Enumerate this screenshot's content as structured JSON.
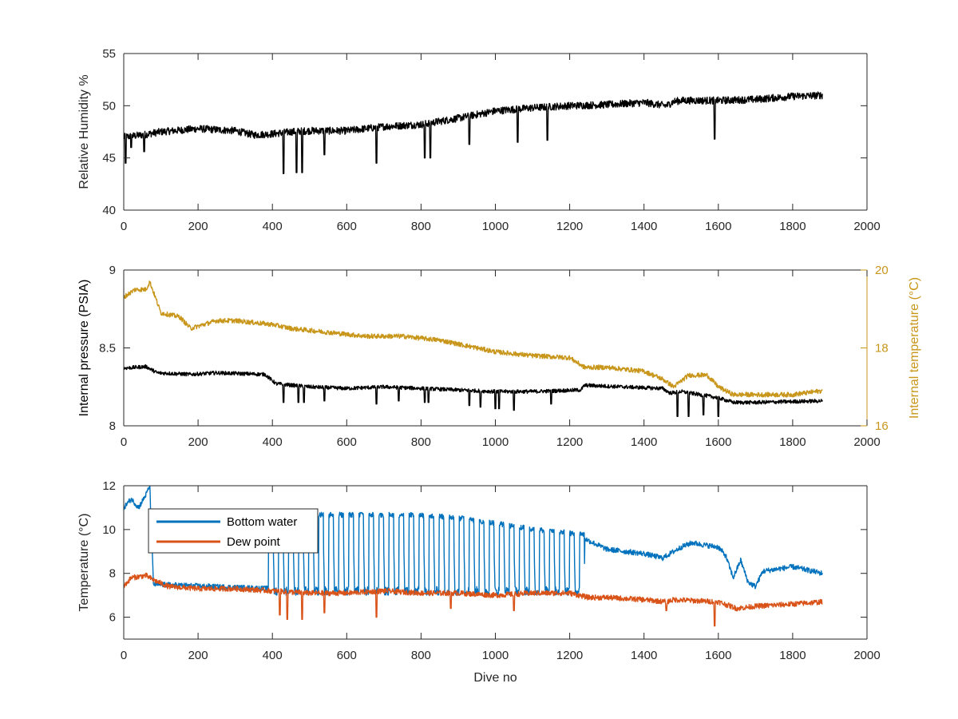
{
  "chart_data": [
    {
      "type": "line",
      "xlim": [
        0,
        2000
      ],
      "ylim": [
        40,
        55
      ],
      "xticks": [
        "0",
        "200",
        "400",
        "600",
        "800",
        "1000",
        "1200",
        "1400",
        "1600",
        "1800",
        "2000"
      ],
      "yticks": [
        "40",
        "45",
        "50",
        "55"
      ],
      "ylabel": "Relative Humidity %",
      "xlabel": "",
      "grid": false,
      "series": [
        {
          "color": "#000000",
          "x": [
            0,
            50,
            100,
            200,
            300,
            350,
            400,
            450,
            500,
            600,
            700,
            800,
            900,
            1000,
            1100,
            1200,
            1300,
            1400,
            1460,
            1480,
            1500,
            1600,
            1700,
            1800,
            1880
          ],
          "y": [
            47.0,
            47.2,
            47.5,
            47.8,
            47.6,
            47.2,
            47.3,
            47.5,
            47.6,
            47.6,
            48.0,
            48.2,
            48.8,
            49.5,
            49.8,
            50.0,
            50.1,
            50.3,
            50.0,
            50.4,
            50.5,
            50.5,
            50.6,
            50.9,
            51.0
          ],
          "dips": [
            [
              5,
              44.5
            ],
            [
              20,
              46.0
            ],
            [
              55,
              45.6
            ],
            [
              430,
              43.5
            ],
            [
              465,
              43.6
            ],
            [
              480,
              43.6
            ],
            [
              540,
              45.3
            ],
            [
              680,
              44.5
            ],
            [
              810,
              45.0
            ],
            [
              825,
              45.0
            ],
            [
              930,
              46.3
            ],
            [
              1060,
              46.5
            ],
            [
              1140,
              46.7
            ],
            [
              1590,
              46.8
            ]
          ]
        }
      ]
    },
    {
      "type": "line",
      "xlim": [
        0,
        2000
      ],
      "ylim": [
        8,
        9
      ],
      "y2lim": [
        16,
        20
      ],
      "xticks": [
        "0",
        "200",
        "400",
        "600",
        "800",
        "1000",
        "1200",
        "1400",
        "1600",
        "1800",
        "2000"
      ],
      "yticks": [
        "8",
        "8.5",
        "9"
      ],
      "y2ticks": [
        "16",
        "18",
        "20"
      ],
      "ylabel": "Internal pressure (PSIA)",
      "y2label": "Internal temperature (°C)",
      "xlabel": "",
      "grid": false,
      "series": [
        {
          "axis": "left",
          "color": "#000000",
          "x": [
            0,
            60,
            90,
            180,
            250,
            380,
            410,
            500,
            600,
            700,
            800,
            900,
            1000,
            1100,
            1230,
            1240,
            1450,
            1470,
            1500,
            1600,
            1640,
            1700,
            1880
          ],
          "y": [
            8.37,
            8.38,
            8.34,
            8.33,
            8.34,
            8.33,
            8.27,
            8.25,
            8.24,
            8.25,
            8.24,
            8.23,
            8.22,
            8.22,
            8.23,
            8.26,
            8.24,
            8.21,
            8.22,
            8.18,
            8.15,
            8.15,
            8.16
          ],
          "dips": [
            [
              430,
              8.15
            ],
            [
              470,
              8.15
            ],
            [
              485,
              8.15
            ],
            [
              540,
              8.16
            ],
            [
              680,
              8.14
            ],
            [
              740,
              8.16
            ],
            [
              810,
              8.15
            ],
            [
              820,
              8.15
            ],
            [
              930,
              8.13
            ],
            [
              960,
              8.12
            ],
            [
              1000,
              8.11
            ],
            [
              1010,
              8.11
            ],
            [
              1050,
              8.1
            ],
            [
              1150,
              8.14
            ],
            [
              1490,
              8.06
            ],
            [
              1520,
              8.06
            ],
            [
              1560,
              8.07
            ],
            [
              1600,
              8.06
            ]
          ]
        },
        {
          "axis": "right",
          "color": "#c8961a",
          "x": [
            0,
            30,
            60,
            70,
            100,
            150,
            180,
            250,
            300,
            400,
            450,
            550,
            650,
            750,
            850,
            900,
            1000,
            1100,
            1200,
            1240,
            1300,
            1400,
            1450,
            1480,
            1520,
            1570,
            1600,
            1640,
            1700,
            1800,
            1880
          ],
          "y": [
            19.3,
            19.5,
            19.5,
            19.7,
            18.9,
            18.8,
            18.5,
            18.7,
            18.7,
            18.6,
            18.5,
            18.4,
            18.3,
            18.3,
            18.2,
            18.1,
            17.9,
            17.8,
            17.75,
            17.5,
            17.5,
            17.4,
            17.2,
            17.0,
            17.3,
            17.3,
            17.0,
            16.8,
            16.8,
            16.8,
            16.9
          ],
          "dips": []
        }
      ]
    },
    {
      "type": "line",
      "xlim": [
        0,
        2000
      ],
      "ylim": [
        5,
        12
      ],
      "xticks": [
        "0",
        "200",
        "400",
        "600",
        "800",
        "1000",
        "1200",
        "1400",
        "1600",
        "1800",
        "2000"
      ],
      "yticks": [
        "6",
        "8",
        "10",
        "12"
      ],
      "ylabel": "Temperature (°C)",
      "xlabel": "Dive no",
      "grid": false,
      "legend": {
        "placement": "top-left",
        "entries": [
          "Bottom water",
          "Dew point"
        ]
      },
      "series": [
        {
          "name": "Bottom water",
          "color": "#0072bd",
          "x": [
            0,
            20,
            40,
            60,
            70,
            80,
            390,
            1240,
            1250,
            1300,
            1400,
            1450,
            1480,
            1500,
            1530,
            1560,
            1600,
            1620,
            1640,
            1660,
            1680,
            1700,
            1720,
            1800,
            1880
          ],
          "y": [
            11.0,
            11.4,
            11.0,
            11.6,
            12.0,
            7.5,
            7.3,
            9.6,
            9.5,
            9.1,
            8.9,
            8.7,
            9.0,
            9.2,
            9.4,
            9.3,
            9.2,
            8.8,
            7.8,
            8.6,
            7.6,
            7.4,
            8.1,
            8.3,
            8.0
          ],
          "oscillation": {
            "x_start": 390,
            "x_end": 1240,
            "low": 7.0,
            "high": [
              10.4,
              10.8,
              10.8,
              10.8,
              10.7,
              10.4,
              10.1,
              9.9
            ],
            "high_x": [
              400,
              520,
              640,
              760,
              880,
              1000,
              1120,
              1240
            ]
          }
        },
        {
          "name": "Dew point",
          "color": "#d95319",
          "x": [
            0,
            20,
            60,
            80,
            120,
            200,
            300,
            400,
            500,
            600,
            700,
            800,
            900,
            1000,
            1100,
            1200,
            1250,
            1300,
            1400,
            1460,
            1480,
            1600,
            1650,
            1700,
            1800,
            1880
          ],
          "y": [
            7.4,
            7.8,
            7.9,
            7.7,
            7.4,
            7.3,
            7.3,
            7.2,
            7.1,
            7.1,
            7.2,
            7.1,
            7.1,
            7.0,
            7.1,
            7.1,
            6.9,
            6.9,
            6.8,
            6.7,
            6.8,
            6.7,
            6.4,
            6.5,
            6.6,
            6.7
          ],
          "dips": [
            [
              420,
              6.1
            ],
            [
              440,
              5.9
            ],
            [
              480,
              5.9
            ],
            [
              540,
              6.2
            ],
            [
              680,
              6.0
            ],
            [
              880,
              6.4
            ],
            [
              1050,
              6.3
            ],
            [
              1460,
              6.3
            ],
            [
              1590,
              5.6
            ]
          ]
        }
      ]
    }
  ]
}
